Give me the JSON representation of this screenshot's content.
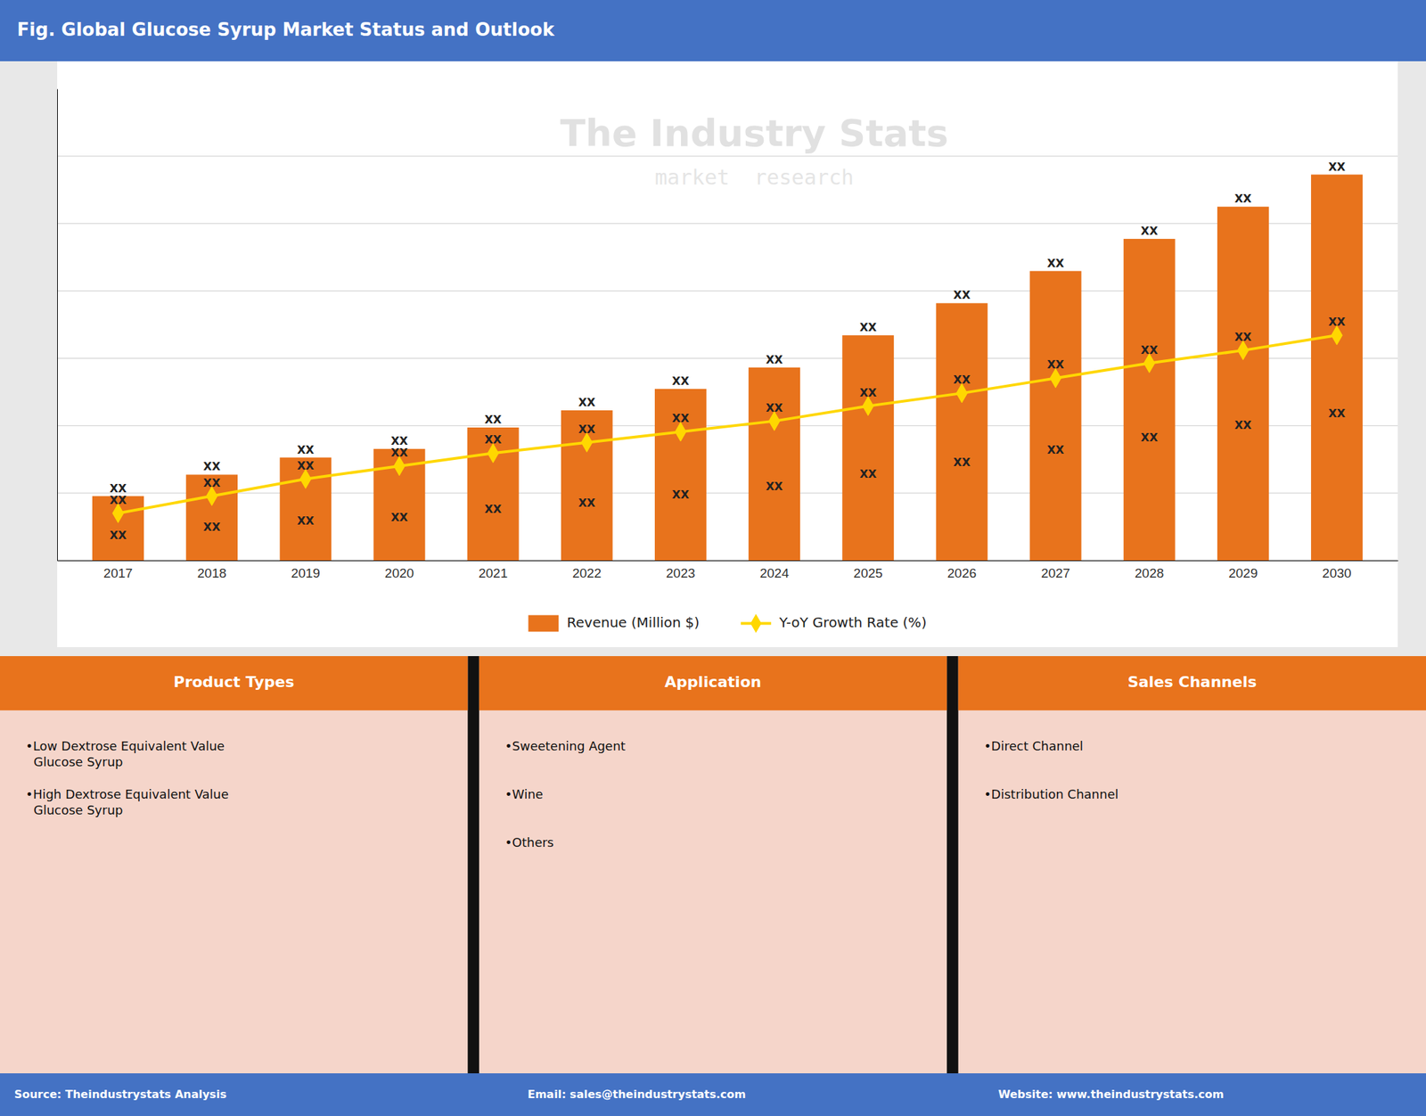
{
  "chart_data": {
    "type": "bar",
    "title": "Fig. Global Glucose Syrup Market Status and Outlook",
    "categories": [
      "2017",
      "2018",
      "2019",
      "2020",
      "2021",
      "2022",
      "2023",
      "2024",
      "2025",
      "2026",
      "2027",
      "2028",
      "2029",
      "2030"
    ],
    "series": [
      {
        "name": "Revenue (Million $)",
        "type": "bar",
        "color": "#E8731C",
        "values": [
          3.0,
          4.0,
          4.8,
          5.2,
          6.2,
          7.0,
          8.0,
          9.0,
          10.5,
          12.0,
          13.5,
          15.0,
          16.5,
          18.0
        ],
        "value_labels": [
          "XX",
          "XX",
          "XX",
          "XX",
          "XX",
          "XX",
          "XX",
          "XX",
          "XX",
          "XX",
          "XX",
          "XX",
          "XX",
          "XX"
        ]
      },
      {
        "name": "Y-oY Growth Rate (%)",
        "type": "line",
        "color": "#FFD700",
        "marker": "diamond",
        "values": [
          2.2,
          3.0,
          3.8,
          4.4,
          5.0,
          5.5,
          6.0,
          6.5,
          7.2,
          7.8,
          8.5,
          9.2,
          9.8,
          10.5
        ],
        "value_labels": [
          "XX",
          "XX",
          "XX",
          "XX",
          "XX",
          "XX",
          "XX",
          "XX",
          "XX",
          "XX",
          "XX",
          "XX",
          "XX",
          "XX"
        ]
      }
    ],
    "ylim": [
      0,
      22
    ],
    "yticks": [
      0,
      3.142857142857143,
      6.285714285714286,
      9.428571428571429,
      12.571428571428571,
      15.714285714285714,
      18.857142857142858
    ],
    "grid": true,
    "tick_labels": "x",
    "annotations": [
      "The Industry Stats",
      "market  research"
    ],
    "panels": [
      {
        "header": "Product Types",
        "items": [
          "•Low Dextrose Equivalent Value\n  Glucose Syrup",
          "•High Dextrose Equivalent Value\n  Glucose Syrup"
        ]
      },
      {
        "header": "Application",
        "items": [
          "•Sweetening Agent",
          "•Wine",
          "•Others"
        ]
      },
      {
        "header": "Sales Channels",
        "items": [
          "•Direct Channel",
          "•Distribution Channel"
        ]
      }
    ],
    "footer": [
      "Source: Theindustrystats Analysis",
      "Email: sales@theindustrystats.com",
      "Website: www.theindustrystats.com"
    ]
  }
}
